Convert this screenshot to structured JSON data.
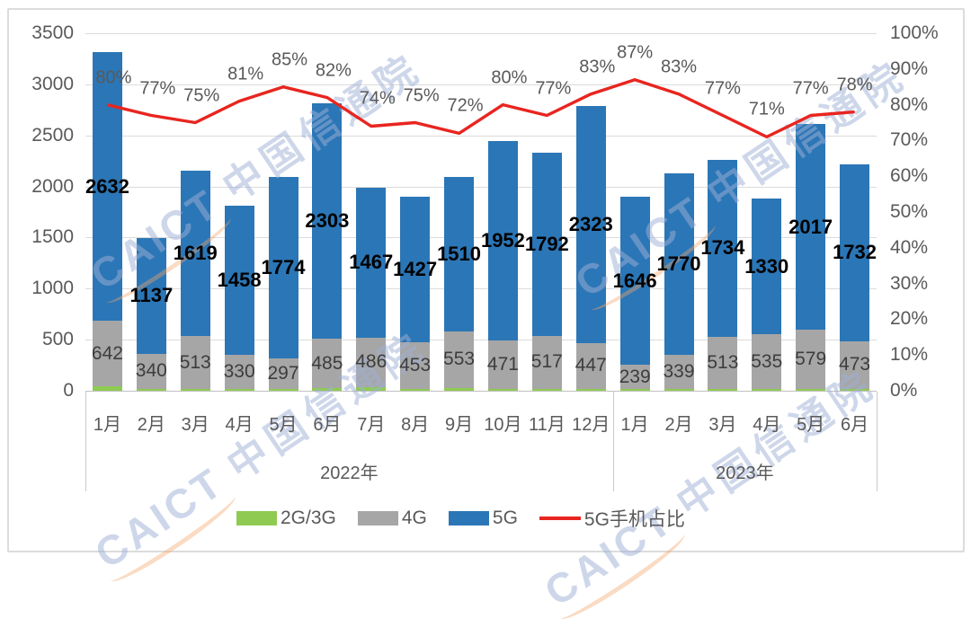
{
  "chart_data": {
    "type": "bar",
    "subtype": "stacked-bar-with-line-combo",
    "title": "",
    "categories": [
      "1月",
      "2月",
      "3月",
      "4月",
      "5月",
      "6月",
      "7月",
      "8月",
      "9月",
      "10月",
      "11月",
      "12月",
      "1月",
      "2月",
      "3月",
      "4月",
      "5月",
      "6月"
    ],
    "year_groups": [
      {
        "label": "2022年",
        "months": 12
      },
      {
        "label": "2023年",
        "months": 6
      }
    ],
    "series": [
      {
        "name": "2G/3G",
        "type": "bar",
        "color": "#8fcb52",
        "values": [
          40,
          20,
          20,
          20,
          20,
          25,
          35,
          20,
          30,
          20,
          20,
          20,
          15,
          15,
          15,
          15,
          15,
          15
        ],
        "estimated": true,
        "labeled": false
      },
      {
        "name": "4G",
        "type": "bar",
        "color": "#a6a6a6",
        "values": [
          642,
          340,
          513,
          330,
          297,
          485,
          486,
          453,
          553,
          471,
          517,
          447,
          239,
          339,
          513,
          535,
          579,
          473
        ]
      },
      {
        "name": "5G",
        "type": "bar",
        "color": "#2b76b6",
        "values": [
          2632,
          1137,
          1619,
          1458,
          1774,
          2303,
          1467,
          1427,
          1510,
          1952,
          1792,
          2323,
          1646,
          1770,
          1734,
          1330,
          2017,
          1732
        ]
      }
    ],
    "line_series": {
      "name": "5G手机占比",
      "type": "line",
      "color": "#e8251f",
      "unit": "%",
      "values": [
        80,
        77,
        75,
        81,
        85,
        82,
        74,
        75,
        72,
        80,
        77,
        83,
        87,
        83,
        77,
        71,
        77,
        78
      ]
    },
    "left_axis": {
      "min": 0,
      "max": 3500,
      "ticks": [
        0,
        500,
        1000,
        1500,
        2000,
        2500,
        3000,
        3500
      ]
    },
    "right_axis": {
      "min": 0,
      "max": 100,
      "step": 10,
      "tick_labels": [
        "0%",
        "10%",
        "20%",
        "30%",
        "40%",
        "50%",
        "60%",
        "70%",
        "80%",
        "90%",
        "100%"
      ]
    },
    "legend": [
      "2G/3G",
      "4G",
      "5G",
      "5G手机占比"
    ],
    "legend_position": "bottom",
    "grid": true
  },
  "watermark": {
    "latin": "CAICT",
    "cjk": "中国信通院"
  }
}
